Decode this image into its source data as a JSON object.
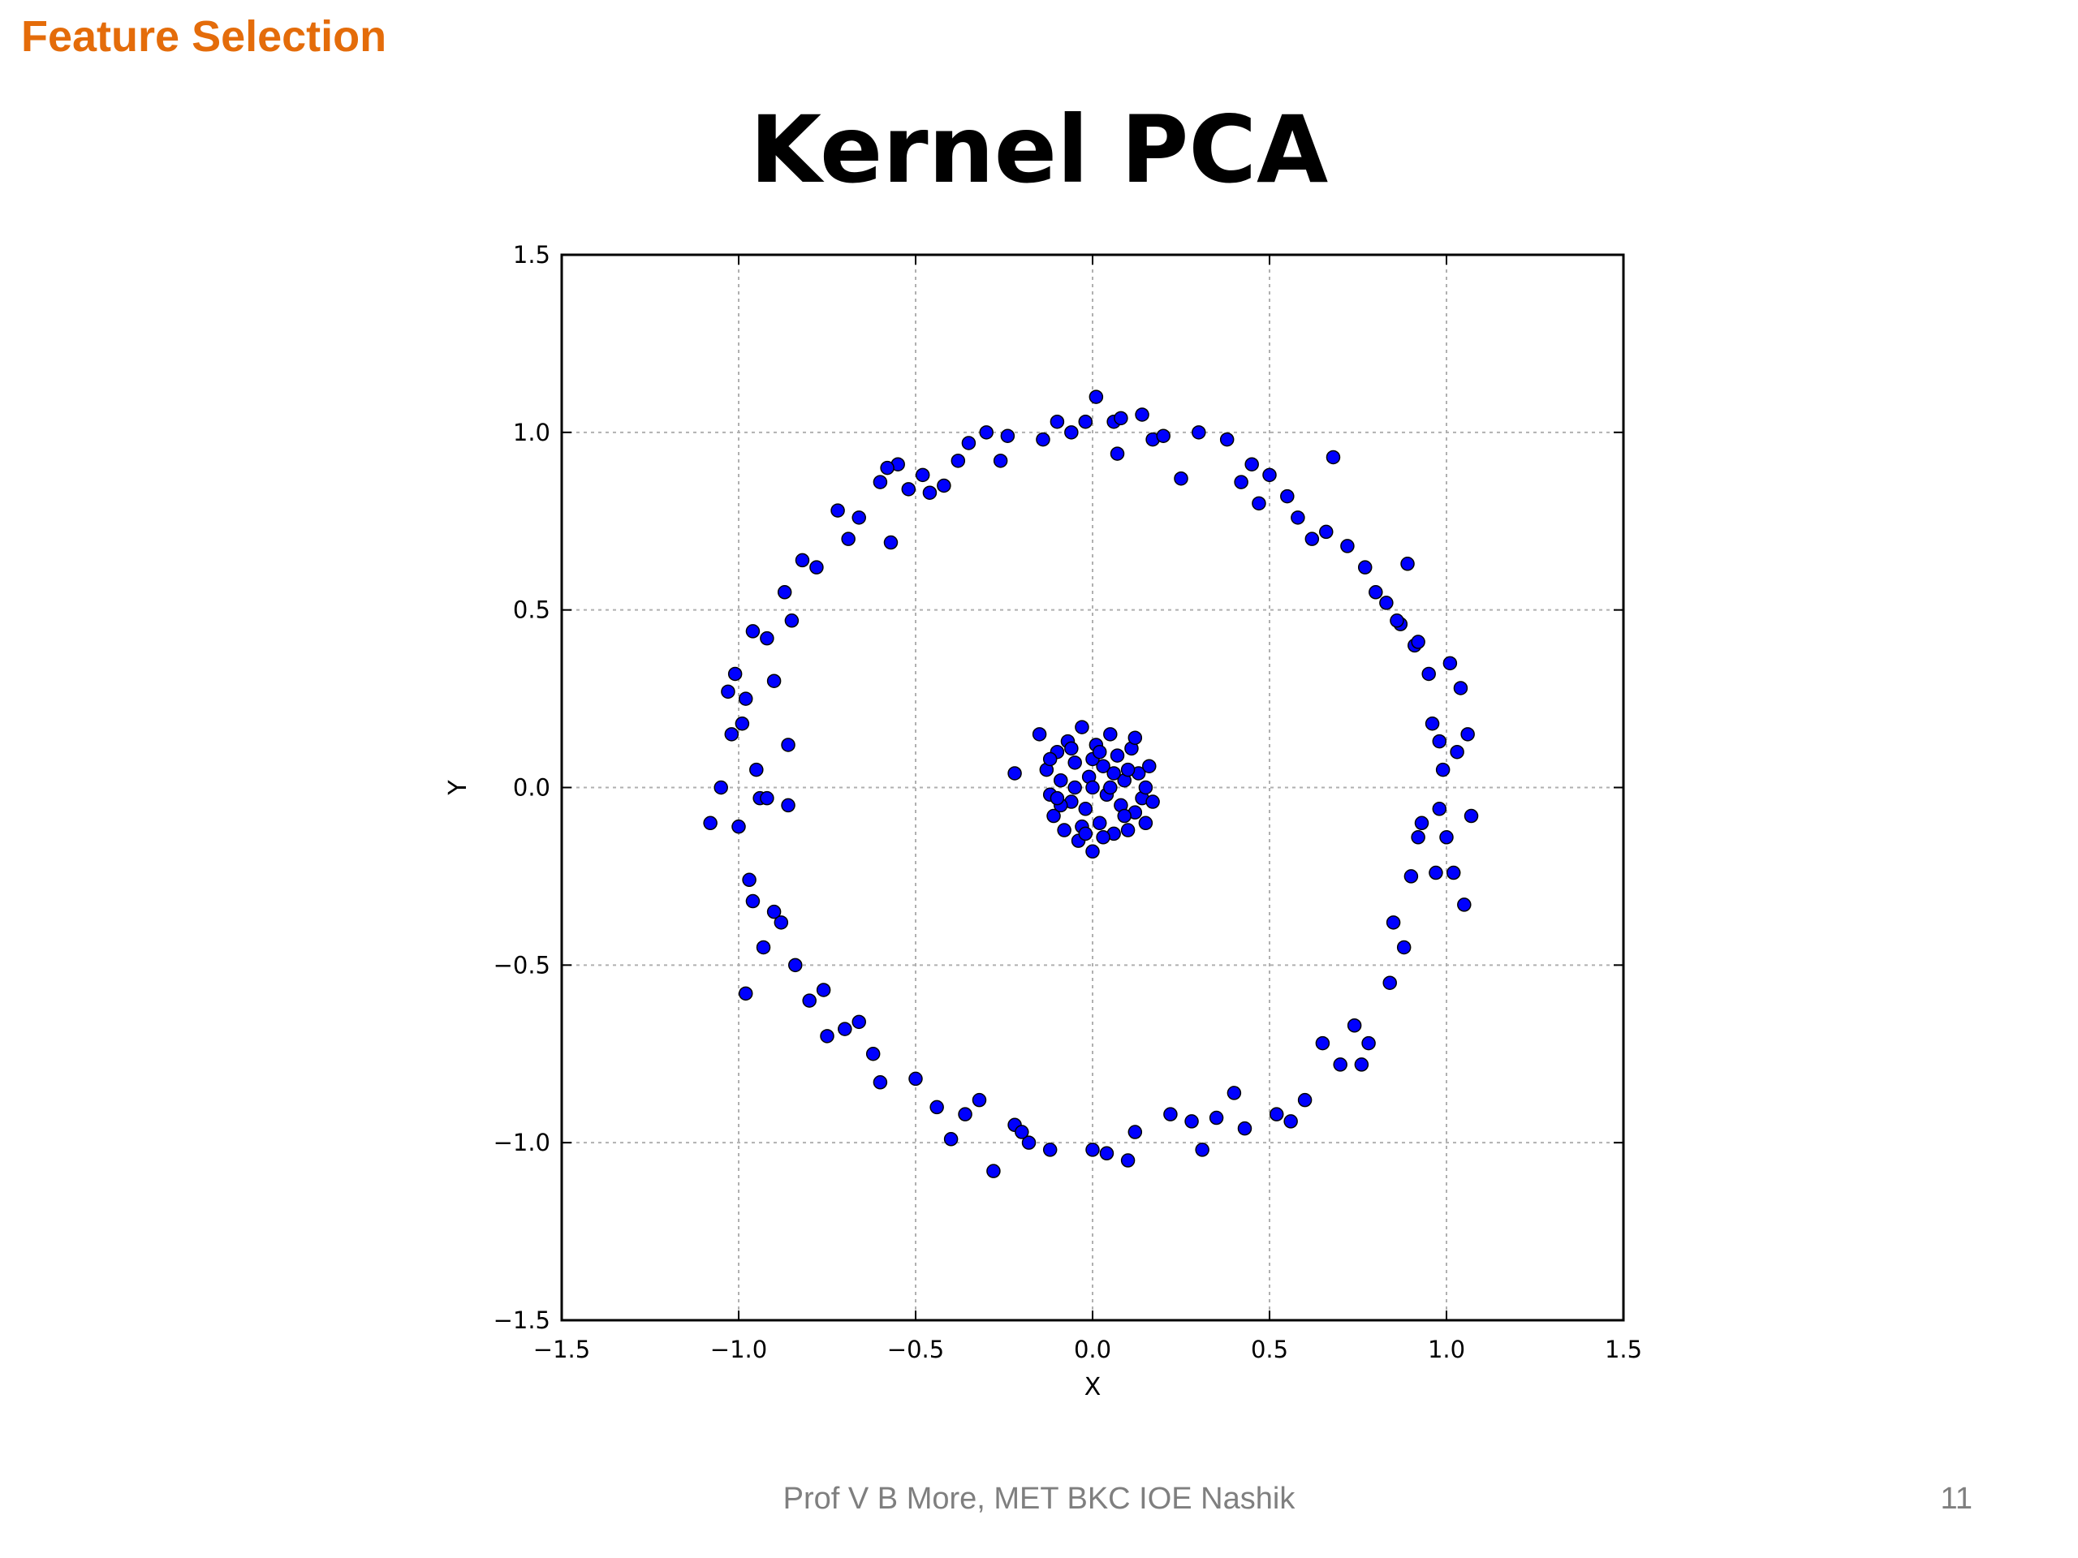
{
  "slide": {
    "section_header": "Feature Selection",
    "title": "Kernel PCA",
    "footer": "Prof V B More, MET BKC IOE Nashik",
    "page_number": "11"
  },
  "colors": {
    "section_header": "#e46c0a",
    "point_fill": "#0000ff",
    "point_edge": "#000000",
    "grid": "#b0b0b0",
    "footer_text": "#7f7f7f"
  },
  "chart_data": {
    "type": "scatter",
    "title": "",
    "xlabel": "X",
    "ylabel": "Y",
    "xlim": [
      -1.5,
      1.5
    ],
    "ylim": [
      -1.5,
      1.5
    ],
    "xticks": [
      -1.5,
      -1.0,
      -0.5,
      0.0,
      0.5,
      1.0,
      1.5
    ],
    "yticks": [
      -1.5,
      -1.0,
      -0.5,
      0.0,
      0.5,
      1.0,
      1.5
    ],
    "xtick_labels": [
      "−1.5",
      "−1.0",
      "−0.5",
      "0.0",
      "0.5",
      "1.0",
      "1.5"
    ],
    "ytick_labels": [
      "−1.5",
      "−1.0",
      "−0.5",
      "0.0",
      "0.5",
      "1.0",
      "1.5"
    ],
    "grid": true,
    "series": [
      {
        "points": [
          [
            -1.08,
            -0.1
          ],
          [
            -1.05,
            0.0
          ],
          [
            -1.03,
            0.27
          ],
          [
            -1.02,
            0.15
          ],
          [
            -1.01,
            0.32
          ],
          [
            -0.99,
            0.18
          ],
          [
            -0.98,
            0.25
          ],
          [
            -0.96,
            0.44
          ],
          [
            -0.95,
            0.05
          ],
          [
            -0.94,
            -0.03
          ],
          [
            -0.97,
            -0.26
          ],
          [
            -0.96,
            -0.32
          ],
          [
            -0.93,
            -0.45
          ],
          [
            -0.92,
            0.42
          ],
          [
            -0.9,
            0.3
          ],
          [
            -0.9,
            -0.35
          ],
          [
            -0.88,
            -0.38
          ],
          [
            -0.87,
            0.55
          ],
          [
            -0.86,
            -0.05
          ],
          [
            -0.85,
            0.47
          ],
          [
            -0.84,
            -0.5
          ],
          [
            -0.82,
            0.64
          ],
          [
            -0.8,
            -0.6
          ],
          [
            -0.78,
            0.62
          ],
          [
            -0.76,
            -0.57
          ],
          [
            -0.72,
            0.78
          ],
          [
            -0.7,
            -0.68
          ],
          [
            -0.69,
            0.7
          ],
          [
            -0.66,
            0.76
          ],
          [
            -0.62,
            -0.75
          ],
          [
            -0.6,
            0.86
          ],
          [
            -0.6,
            -0.83
          ],
          [
            -0.57,
            0.69
          ],
          [
            -0.55,
            0.91
          ],
          [
            -0.52,
            0.84
          ],
          [
            -0.5,
            -0.82
          ],
          [
            -0.48,
            0.88
          ],
          [
            -0.44,
            -0.9
          ],
          [
            -0.42,
            0.85
          ],
          [
            -0.4,
            -0.99
          ],
          [
            -0.38,
            0.92
          ],
          [
            -0.35,
            0.97
          ],
          [
            -0.32,
            -0.88
          ],
          [
            -0.3,
            1.0
          ],
          [
            -0.28,
            -1.08
          ],
          [
            -0.26,
            0.92
          ],
          [
            -0.22,
            -0.95
          ],
          [
            -0.18,
            -1.0
          ],
          [
            -0.14,
            0.98
          ],
          [
            -0.12,
            -1.02
          ],
          [
            -0.1,
            1.03
          ],
          [
            -0.06,
            1.0
          ],
          [
            -0.02,
            1.03
          ],
          [
            0.0,
            -1.02
          ],
          [
            0.01,
            1.1
          ],
          [
            0.04,
            -1.03
          ],
          [
            0.06,
            1.03
          ],
          [
            0.07,
            0.94
          ],
          [
            0.1,
            -1.05
          ],
          [
            0.12,
            -0.97
          ],
          [
            0.14,
            1.05
          ],
          [
            0.17,
            0.98
          ],
          [
            0.2,
            0.99
          ],
          [
            0.25,
            0.87
          ],
          [
            0.28,
            -0.94
          ],
          [
            0.3,
            1.0
          ],
          [
            0.31,
            -1.02
          ],
          [
            0.35,
            -0.93
          ],
          [
            0.38,
            0.98
          ],
          [
            0.42,
            0.86
          ],
          [
            0.43,
            -0.96
          ],
          [
            0.45,
            0.91
          ],
          [
            0.47,
            0.8
          ],
          [
            0.5,
            0.88
          ],
          [
            0.52,
            -0.92
          ],
          [
            0.55,
            0.82
          ],
          [
            0.58,
            0.76
          ],
          [
            0.6,
            -0.88
          ],
          [
            0.62,
            0.7
          ],
          [
            0.65,
            -0.72
          ],
          [
            0.68,
            0.93
          ],
          [
            0.7,
            -0.78
          ],
          [
            0.72,
            0.68
          ],
          [
            0.74,
            -0.67
          ],
          [
            0.77,
            0.62
          ],
          [
            0.78,
            -0.72
          ],
          [
            0.8,
            0.55
          ],
          [
            0.83,
            0.52
          ],
          [
            0.84,
            -0.55
          ],
          [
            0.85,
            -0.38
          ],
          [
            0.87,
            0.46
          ],
          [
            0.88,
            -0.45
          ],
          [
            0.89,
            0.63
          ],
          [
            0.9,
            -0.25
          ],
          [
            0.91,
            0.4
          ],
          [
            0.92,
            -0.14
          ],
          [
            0.93,
            -0.1
          ],
          [
            0.95,
            0.32
          ],
          [
            0.96,
            0.18
          ],
          [
            0.97,
            -0.24
          ],
          [
            0.98,
            0.13
          ],
          [
            0.99,
            0.05
          ],
          [
            1.0,
            -0.14
          ],
          [
            1.01,
            0.35
          ],
          [
            1.02,
            -0.24
          ],
          [
            1.03,
            0.1
          ],
          [
            1.04,
            0.28
          ],
          [
            1.05,
            -0.33
          ],
          [
            1.06,
            0.15
          ],
          [
            1.07,
            -0.08
          ],
          [
            -1.0,
            -0.11
          ],
          [
            -0.98,
            -0.58
          ],
          [
            -0.92,
            -0.03
          ],
          [
            -0.86,
            0.12
          ],
          [
            -0.75,
            -0.7
          ],
          [
            -0.66,
            -0.66
          ],
          [
            -0.58,
            0.9
          ],
          [
            -0.46,
            0.83
          ],
          [
            -0.36,
            -0.92
          ],
          [
            -0.24,
            0.99
          ],
          [
            -0.2,
            -0.97
          ],
          [
            0.08,
            1.04
          ],
          [
            0.22,
            -0.92
          ],
          [
            0.4,
            -0.86
          ],
          [
            0.56,
            -0.94
          ],
          [
            0.66,
            0.72
          ],
          [
            0.76,
            -0.78
          ],
          [
            0.86,
            0.47
          ],
          [
            0.92,
            0.41
          ],
          [
            0.98,
            -0.06
          ]
        ]
      },
      {
        "points": [
          [
            -0.15,
            0.15
          ],
          [
            -0.13,
            0.05
          ],
          [
            -0.12,
            -0.02
          ],
          [
            -0.11,
            -0.08
          ],
          [
            -0.1,
            0.1
          ],
          [
            -0.09,
            0.02
          ],
          [
            -0.08,
            -0.12
          ],
          [
            -0.07,
            0.13
          ],
          [
            -0.06,
            -0.04
          ],
          [
            -0.05,
            0.07
          ],
          [
            -0.04,
            -0.15
          ],
          [
            -0.03,
            0.17
          ],
          [
            -0.02,
            -0.06
          ],
          [
            -0.01,
            0.03
          ],
          [
            0.0,
            -0.18
          ],
          [
            0.01,
            0.12
          ],
          [
            0.02,
            -0.1
          ],
          [
            0.03,
            0.06
          ],
          [
            0.04,
            -0.02
          ],
          [
            0.05,
            0.15
          ],
          [
            0.06,
            -0.13
          ],
          [
            0.07,
            0.09
          ],
          [
            0.08,
            -0.05
          ],
          [
            0.09,
            0.02
          ],
          [
            0.1,
            -0.12
          ],
          [
            0.11,
            0.11
          ],
          [
            0.12,
            -0.07
          ],
          [
            0.13,
            0.04
          ],
          [
            0.14,
            -0.03
          ],
          [
            0.15,
            -0.1
          ],
          [
            0.16,
            0.06
          ],
          [
            0.17,
            -0.04
          ],
          [
            -0.12,
            0.08
          ],
          [
            -0.09,
            -0.05
          ],
          [
            -0.06,
            0.11
          ],
          [
            -0.03,
            -0.11
          ],
          [
            0.0,
            0.08
          ],
          [
            0.03,
            -0.14
          ],
          [
            0.06,
            0.04
          ],
          [
            0.09,
            -0.08
          ],
          [
            0.12,
            0.14
          ],
          [
            0.15,
            0.0
          ],
          [
            -0.05,
            0.0
          ],
          [
            0.05,
            0.0
          ],
          [
            0.0,
            0.0
          ],
          [
            0.1,
            0.05
          ],
          [
            -0.1,
            -0.03
          ],
          [
            0.02,
            0.1
          ],
          [
            -0.02,
            -0.13
          ],
          [
            -0.22,
            0.04
          ]
        ]
      }
    ]
  }
}
